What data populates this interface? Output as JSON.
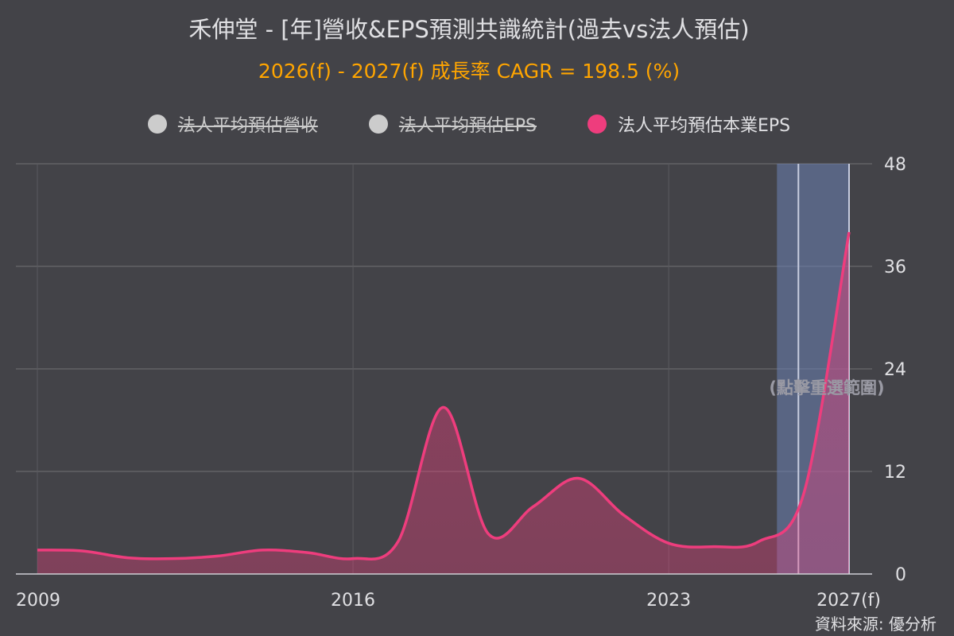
{
  "chart_data": {
    "type": "area",
    "title": "禾伸堂 - [年]營收&EPS預測共識統計(過去vs法人預估)",
    "subtitle": "2026(f) - 2027(f) 成長率 CAGR = 198.5 (%)",
    "legend": [
      {
        "name": "法人平均預估營收",
        "visible": false,
        "color": "#cccccc"
      },
      {
        "name": "法人平均預估EPS",
        "visible": false,
        "color": "#cccccc"
      },
      {
        "name": "法人平均預估本業EPS",
        "visible": true,
        "color": "#ee3d7d"
      }
    ],
    "legend_position": "top",
    "x_ticks": [
      "2009",
      "2016",
      "2023",
      "2027(f)"
    ],
    "x_tick_years": [
      2009,
      2016,
      2023,
      2027
    ],
    "y_ticks": [
      "0",
      "12",
      "24",
      "36",
      "48"
    ],
    "ylim": [
      0,
      48
    ],
    "xlim": [
      2009,
      2027
    ],
    "grid": true,
    "series": [
      {
        "name": "法人平均預估本業EPS",
        "color": "#ee3d7d",
        "x": [
          2009,
          2010,
          2011,
          2012,
          2013,
          2014,
          2015,
          2016,
          2017,
          2018,
          2019,
          2020,
          2021,
          2022,
          2023,
          2024,
          2025,
          2026,
          2027
        ],
        "values": [
          2.8,
          2.7,
          1.9,
          1.8,
          2.1,
          2.8,
          2.5,
          1.8,
          3.8,
          19.5,
          4.7,
          7.9,
          11.2,
          6.9,
          3.6,
          3.2,
          3.8,
          9.5,
          40
        ]
      }
    ],
    "forecast_band": {
      "from": 2026,
      "to": 2027
    },
    "selection_hint": "(點擊重選範圍)"
  },
  "source": "資料來源: 優分析",
  "colors": {
    "background": "#434348",
    "grid": "#707073",
    "accent": "#ffa500",
    "band": "#6b82b4"
  }
}
